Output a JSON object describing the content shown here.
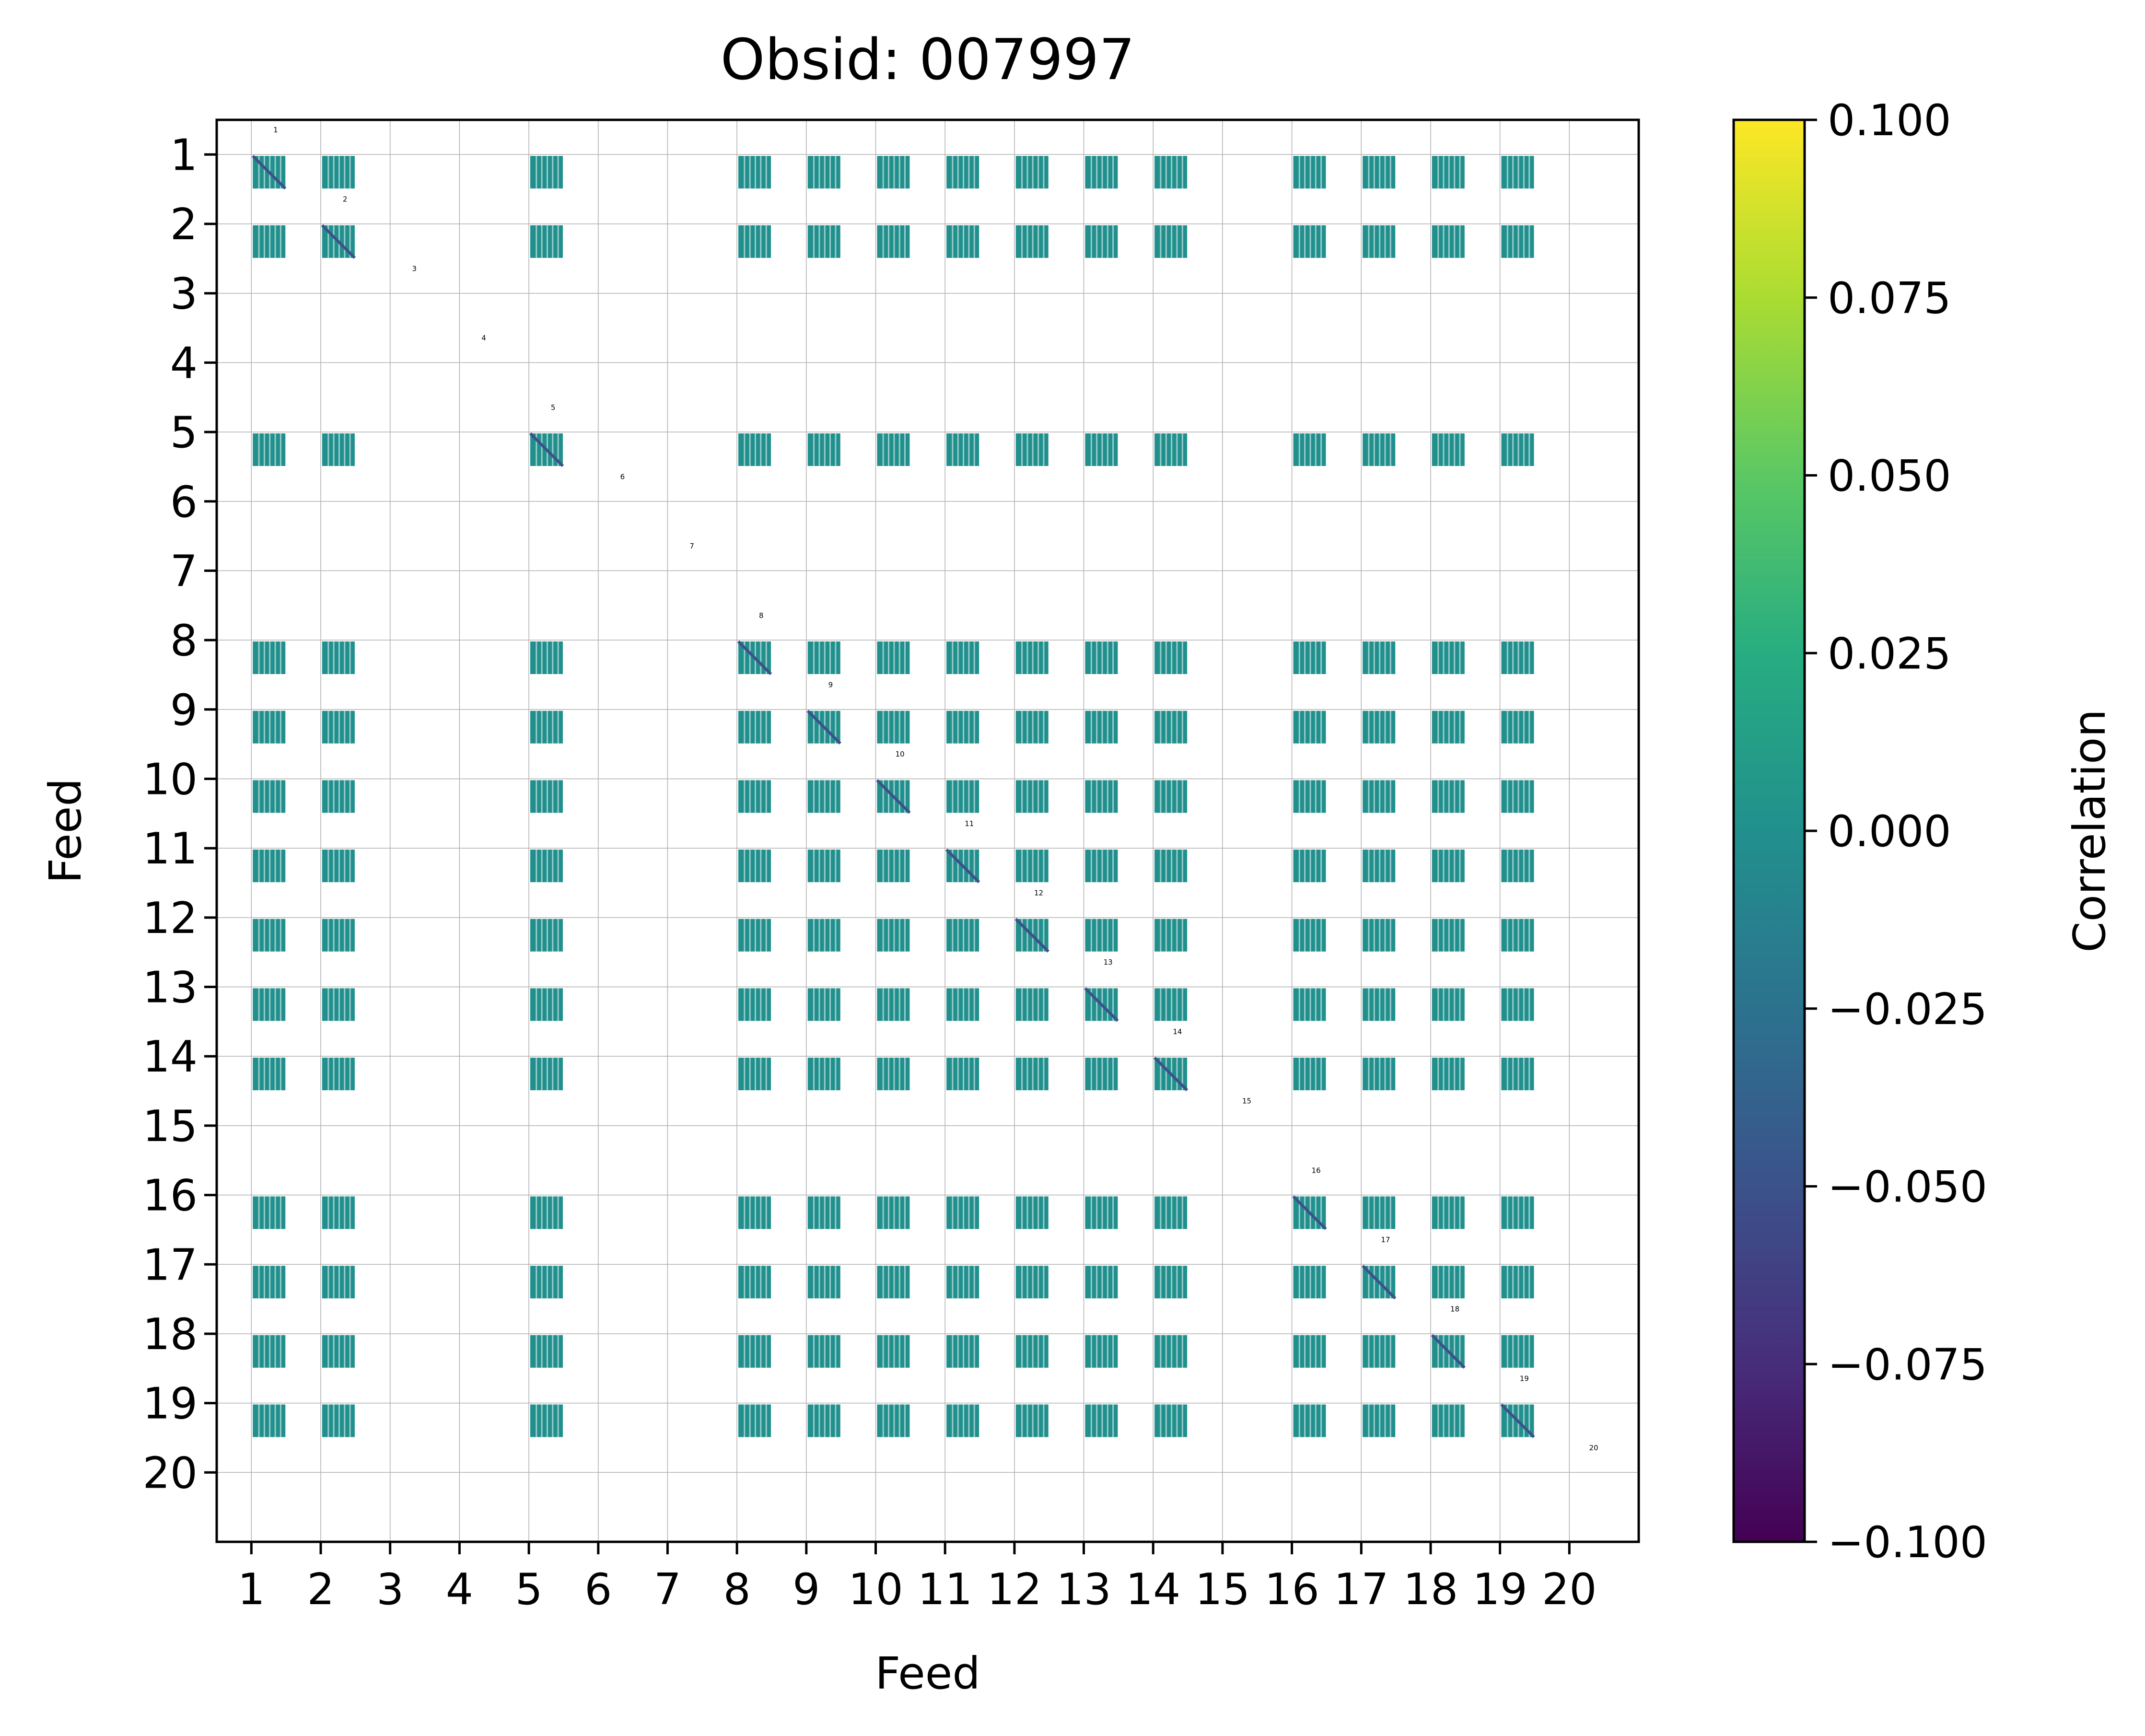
{
  "chart_data": {
    "type": "heatmap",
    "title": "Obsid: 007997",
    "xlabel": "Feed",
    "ylabel": "Feed",
    "feeds": [
      1,
      2,
      3,
      4,
      5,
      6,
      7,
      8,
      9,
      10,
      11,
      12,
      13,
      14,
      15,
      16,
      17,
      18,
      19,
      20
    ],
    "x_tick_labels": [
      "1",
      "2",
      "3",
      "4",
      "5",
      "6",
      "7",
      "8",
      "9",
      "10",
      "11",
      "12",
      "13",
      "14",
      "15",
      "16",
      "17",
      "18",
      "19",
      "20"
    ],
    "y_tick_labels": [
      "1",
      "2",
      "3",
      "4",
      "5",
      "6",
      "7",
      "8",
      "9",
      "10",
      "11",
      "12",
      "13",
      "14",
      "15",
      "16",
      "17",
      "18",
      "19",
      "20"
    ],
    "diagonal_labels": [
      "1",
      "2",
      "3",
      "4",
      "5",
      "6",
      "7",
      "8",
      "9",
      "10",
      "11",
      "12",
      "13",
      "14",
      "15",
      "16",
      "17",
      "18",
      "19",
      "20"
    ],
    "active_feeds": [
      1,
      2,
      5,
      8,
      9,
      10,
      11,
      12,
      13,
      14,
      16,
      17,
      18,
      19
    ],
    "inactive_feeds": [
      3,
      4,
      6,
      7,
      15,
      20
    ],
    "off_diagonal_correlation": 0.0,
    "diagonal_correlation": -0.05,
    "colorbar": {
      "label": "Correlation",
      "colormap": "viridis",
      "vmin": -0.1,
      "vmax": 0.1,
      "ticks": [
        -0.1,
        -0.075,
        -0.05,
        -0.025,
        0.0,
        0.025,
        0.05,
        0.075,
        0.1
      ],
      "tick_labels": [
        "−0.100",
        "−0.075",
        "−0.050",
        "−0.025",
        "0.000",
        "0.025",
        "0.050",
        "0.075",
        "0.100"
      ]
    },
    "grid": true
  },
  "colors": {
    "cell": "#21908d",
    "diagonal": "#3b528b",
    "grid": "#b0b0b0",
    "gap": "#ffffff"
  }
}
